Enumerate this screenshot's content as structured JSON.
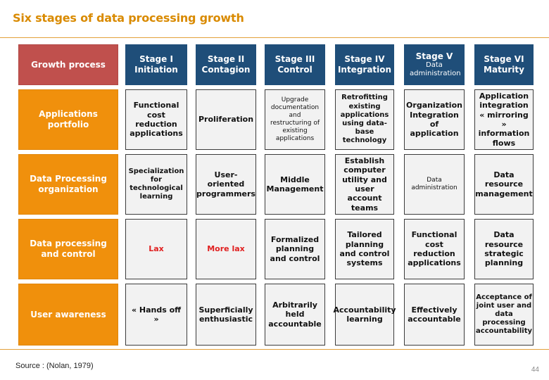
{
  "title": "Six stages of data processing growth",
  "header": {
    "corner": "Growth process",
    "stages": [
      {
        "label": "Stage I",
        "name": "Initiation"
      },
      {
        "label": "Stage II",
        "name": "Contagion"
      },
      {
        "label": "Stage III",
        "name": "Control"
      },
      {
        "label": "Stage IV",
        "name": "Integration"
      },
      {
        "label": "Stage V",
        "name": "Data administration"
      },
      {
        "label": "Stage VI",
        "name": "Maturity"
      }
    ]
  },
  "rows": [
    {
      "label": "Applications portfolio",
      "cells": [
        "Functional cost reduction applications",
        "Proliferation",
        "Upgrade documentation and restructuring of existing applications",
        "Retrofitting existing applications using data-base technology",
        "Organization Integration of application",
        "Application integration « mirroring » information flows"
      ]
    },
    {
      "label": "Data Processing organization",
      "cells": [
        "Specialization for technological learning",
        "User-oriented programmers",
        "Middle Management",
        "Establish computer utility and user account teams",
        "Data administration",
        "Data resource management"
      ]
    },
    {
      "label": "Data processing and control",
      "cells": [
        "Lax",
        "More lax",
        "Formalized planning and control",
        "Tailored planning and control systems",
        "Functional cost reduction applications",
        "Data resource strategic planning"
      ]
    },
    {
      "label": "User awareness",
      "cells": [
        "« Hands off »",
        "Superficially enthusiastic",
        "Arbitrarily held accountable",
        "Accountability learning",
        "Effectively accountable",
        "Acceptance of joint user and data processing accountability"
      ]
    }
  ],
  "source": "Source : (Nolan, 1979)",
  "page_number": "44"
}
